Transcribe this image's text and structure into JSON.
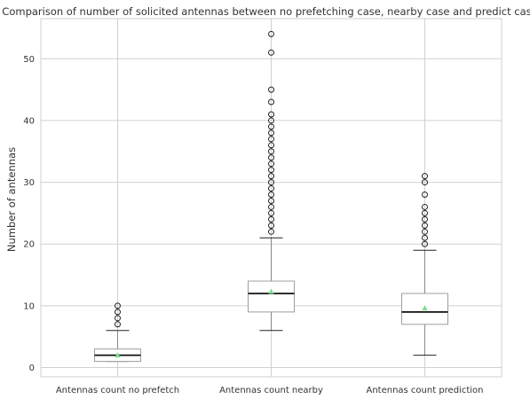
{
  "chart_data": {
    "type": "box",
    "title": "Comparison of number of solicited antennas between no prefetching case, nearby case and predict case",
    "xlabel": "",
    "ylabel": "Number of antennas",
    "ylim": [
      -1.5,
      56.5
    ],
    "yticks": [
      0,
      10,
      20,
      30,
      40,
      50
    ],
    "grid": true,
    "legend": "none",
    "colors": {
      "box": "#9e9e9e",
      "median": "#111111",
      "mean_marker": "#7fdc8f",
      "grid": "#d0d0d0",
      "outlier": "#222222"
    },
    "categories": [
      "Antennas count no prefetch",
      "Antennas count nearby",
      "Antennas count prediction"
    ],
    "boxes": [
      {
        "label": "Antennas count no prefetch",
        "whisker_low": 1,
        "q1": 1,
        "median": 2,
        "q3": 3,
        "whisker_high": 6,
        "mean": 2.0,
        "outliers": [
          7,
          8,
          9,
          10
        ]
      },
      {
        "label": "Antennas count nearby",
        "whisker_low": 6,
        "q1": 9,
        "median": 12,
        "q3": 14,
        "whisker_high": 21,
        "mean": 12.3,
        "outliers": [
          22,
          23,
          24,
          25,
          26,
          27,
          28,
          29,
          30,
          31,
          32,
          33,
          34,
          35,
          36,
          37,
          38,
          39,
          40,
          41,
          43,
          45,
          51,
          54
        ]
      },
      {
        "label": "Antennas count prediction",
        "whisker_low": 2,
        "q1": 7,
        "median": 9,
        "q3": 12,
        "whisker_high": 19,
        "mean": 9.6,
        "outliers": [
          20,
          21,
          22,
          23,
          24,
          25,
          26,
          28,
          30,
          31
        ]
      }
    ]
  }
}
